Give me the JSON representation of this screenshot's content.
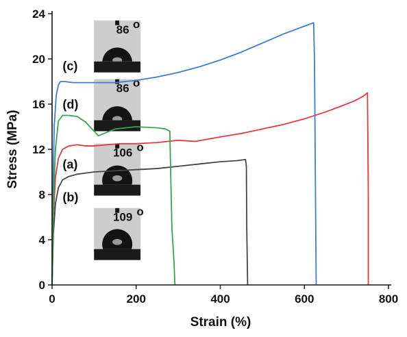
{
  "chart_data": {
    "type": "line",
    "xlabel": "Strain (%)",
    "ylabel": "Stress (MPa)",
    "xlim": [
      0,
      800
    ],
    "ylim": [
      0,
      24
    ],
    "xticks": [
      0,
      200,
      400,
      600,
      800
    ],
    "yticks": [
      0,
      4,
      8,
      12,
      16,
      20,
      24
    ],
    "grid": false,
    "series": [
      {
        "name": "(a)",
        "color": "#e8363a",
        "x": [
          0,
          3,
          8,
          15,
          25,
          40,
          60,
          80,
          100,
          130,
          160,
          200,
          250,
          300,
          340,
          400,
          450,
          500,
          550,
          600,
          650,
          700,
          720,
          740,
          750,
          752,
          752
        ],
        "y": [
          0,
          6,
          9.5,
          11.2,
          12.0,
          12.3,
          12.4,
          12.3,
          12.3,
          12.4,
          12.5,
          12.5,
          12.6,
          12.8,
          12.7,
          13.1,
          13.4,
          13.8,
          14.2,
          14.7,
          15.3,
          16.0,
          16.3,
          16.7,
          17.0,
          8,
          0
        ]
      },
      {
        "name": "(b)",
        "color": "#444444",
        "x": [
          0,
          3,
          8,
          15,
          25,
          40,
          60,
          80,
          100,
          150,
          200,
          250,
          300,
          350,
          400,
          440,
          460,
          462,
          463,
          465
        ],
        "y": [
          0,
          4.5,
          7.2,
          8.6,
          9.3,
          9.6,
          9.8,
          9.9,
          10.0,
          10.1,
          10.2,
          10.3,
          10.5,
          10.7,
          10.9,
          11.0,
          11.1,
          10.5,
          5,
          0
        ]
      },
      {
        "name": "(c)",
        "color": "#3b7bd9",
        "x": [
          0,
          2,
          5,
          10,
          15,
          20,
          30,
          50,
          80,
          100,
          150,
          200,
          250,
          300,
          350,
          400,
          450,
          500,
          550,
          600,
          622,
          624,
          626,
          628
        ],
        "y": [
          0,
          8,
          14,
          16.8,
          17.7,
          18.0,
          18.0,
          17.9,
          17.9,
          17.9,
          17.9,
          18.1,
          18.4,
          18.8,
          19.3,
          19.9,
          20.6,
          21.4,
          22.2,
          22.9,
          23.2,
          20,
          10,
          0
        ]
      },
      {
        "name": "(d)",
        "color": "#2fa84f",
        "x": [
          0,
          3,
          8,
          15,
          25,
          40,
          60,
          80,
          95,
          110,
          150,
          200,
          250,
          270,
          280,
          282,
          285,
          290,
          292
        ],
        "y": [
          0,
          7,
          12,
          14.5,
          15.0,
          15.0,
          14.9,
          14.4,
          13.8,
          13.2,
          13.8,
          14.0,
          13.9,
          13.8,
          13.6,
          10,
          5,
          2,
          0
        ]
      }
    ],
    "annotations": [
      {
        "label": "(c)",
        "x": 25,
        "y": 19.0
      },
      {
        "label": "(d)",
        "x": 25,
        "y": 15.6
      },
      {
        "label": "(a)",
        "x": 25,
        "y": 10.3
      },
      {
        "label": "(b)",
        "x": 25,
        "y": 7.4
      }
    ],
    "insets": [
      {
        "angle_label": "86",
        "center_x": 155,
        "bottom_y": 18.8,
        "contact_angle": 86
      },
      {
        "angle_label": "86",
        "center_x": 155,
        "bottom_y": 13.6,
        "contact_angle": 86
      },
      {
        "angle_label": "106",
        "center_x": 155,
        "bottom_y": 7.9,
        "contact_angle": 106
      },
      {
        "angle_label": "109",
        "center_x": 155,
        "bottom_y": 2.2,
        "contact_angle": 109
      }
    ]
  }
}
